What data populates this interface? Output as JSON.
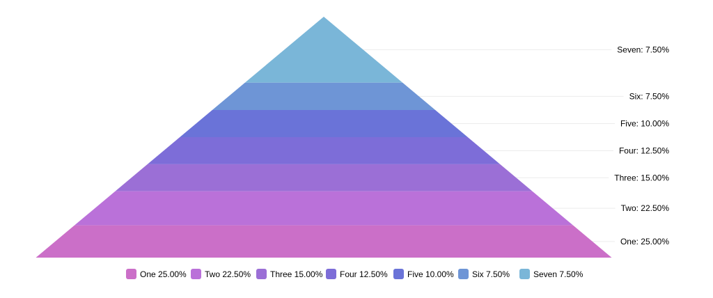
{
  "chart_data": {
    "type": "pyramid",
    "sizing": "area",
    "legend_position": "bottom",
    "categories": [
      "One",
      "Two",
      "Three",
      "Four",
      "Five",
      "Six",
      "Seven"
    ],
    "values": [
      25.0,
      22.5,
      15.0,
      12.5,
      10.0,
      7.5,
      7.5
    ],
    "colors": [
      "#cb6fc8",
      "#ba71d9",
      "#9b6fd6",
      "#7d6dd8",
      "#6a73d8",
      "#6e95d6",
      "#7ab6d8"
    ],
    "labels": [
      "One: 25.00%",
      "Two: 22.50%",
      "Three: 15.00%",
      "Four: 12.50%",
      "Five: 10.00%",
      "Six: 7.50%",
      "Seven: 7.50%"
    ],
    "legend": [
      {
        "name": "One",
        "value": "25.00%"
      },
      {
        "name": "Two",
        "value": "22.50%"
      },
      {
        "name": "Three",
        "value": "15.00%"
      },
      {
        "name": "Four",
        "value": "12.50%"
      },
      {
        "name": "Five",
        "value": "10.00%"
      },
      {
        "name": "Six",
        "value": "7.50%"
      },
      {
        "name": "Seven",
        "value": "7.50%"
      }
    ]
  }
}
